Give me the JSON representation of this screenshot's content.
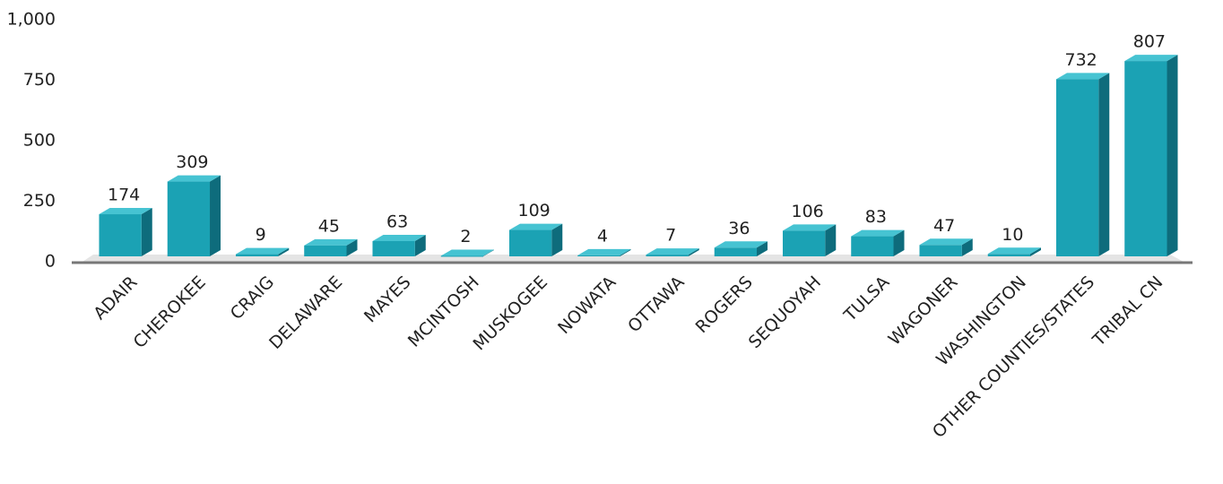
{
  "chart_data": {
    "type": "bar3d",
    "categories": [
      "ADAIR",
      "CHEROKEE",
      "CRAIG",
      "DELAWARE",
      "MAYES",
      "MCINTOSH",
      "MUSKOGEE",
      "NOWATA",
      "OTTAWA",
      "ROGERS",
      "SEQUOYAH",
      "TULSA",
      "WAGONER",
      "WASHINGTON",
      "OTHER COUNTIES/STATES",
      "TRIBAL CN"
    ],
    "values": [
      174,
      309,
      9,
      45,
      63,
      2,
      109,
      4,
      7,
      36,
      106,
      83,
      47,
      10,
      732,
      807
    ],
    "color": "#1ba2b4",
    "ylim": [
      0,
      1000
    ],
    "yticks": [
      0,
      250,
      500,
      750,
      {
        "value": 1000,
        "label": "1,000"
      }
    ],
    "grid": false
  }
}
